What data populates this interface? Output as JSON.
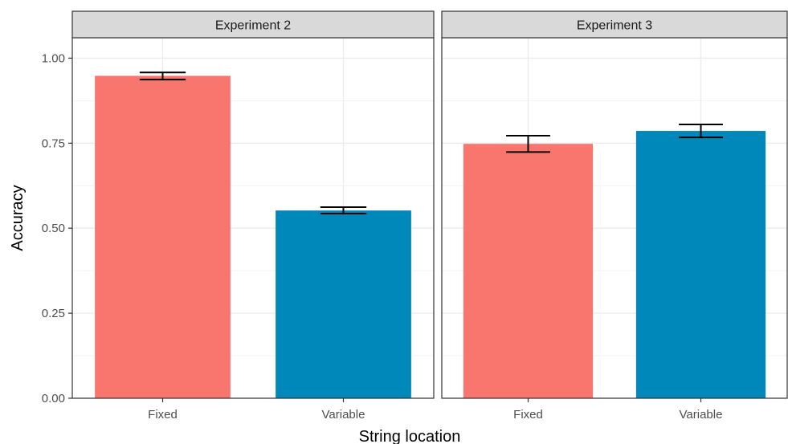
{
  "chart_data": {
    "type": "bar",
    "xlabel": "String location",
    "ylabel": "Accuracy",
    "ylim": [
      0,
      1.06
    ],
    "yticks": [
      "0.00",
      "0.25",
      "0.50",
      "0.75",
      "1.00"
    ],
    "ytick_values": [
      0,
      0.25,
      0.5,
      0.75,
      1.0
    ],
    "categories": [
      "Fixed",
      "Variable"
    ],
    "colors": {
      "Fixed": "#F8766D",
      "Variable": "#0088BB"
    },
    "grid": true,
    "legend": "none",
    "panels": [
      {
        "title": "Experiment 2",
        "bars": [
          {
            "category": "Fixed",
            "value": 0.948,
            "err_low": 0.937,
            "err_high": 0.958
          },
          {
            "category": "Variable",
            "value": 0.552,
            "err_low": 0.543,
            "err_high": 0.562
          }
        ]
      },
      {
        "title": "Experiment 3",
        "bars": [
          {
            "category": "Fixed",
            "value": 0.748,
            "err_low": 0.724,
            "err_high": 0.772
          },
          {
            "category": "Variable",
            "value": 0.786,
            "err_low": 0.767,
            "err_high": 0.805
          }
        ]
      }
    ]
  }
}
